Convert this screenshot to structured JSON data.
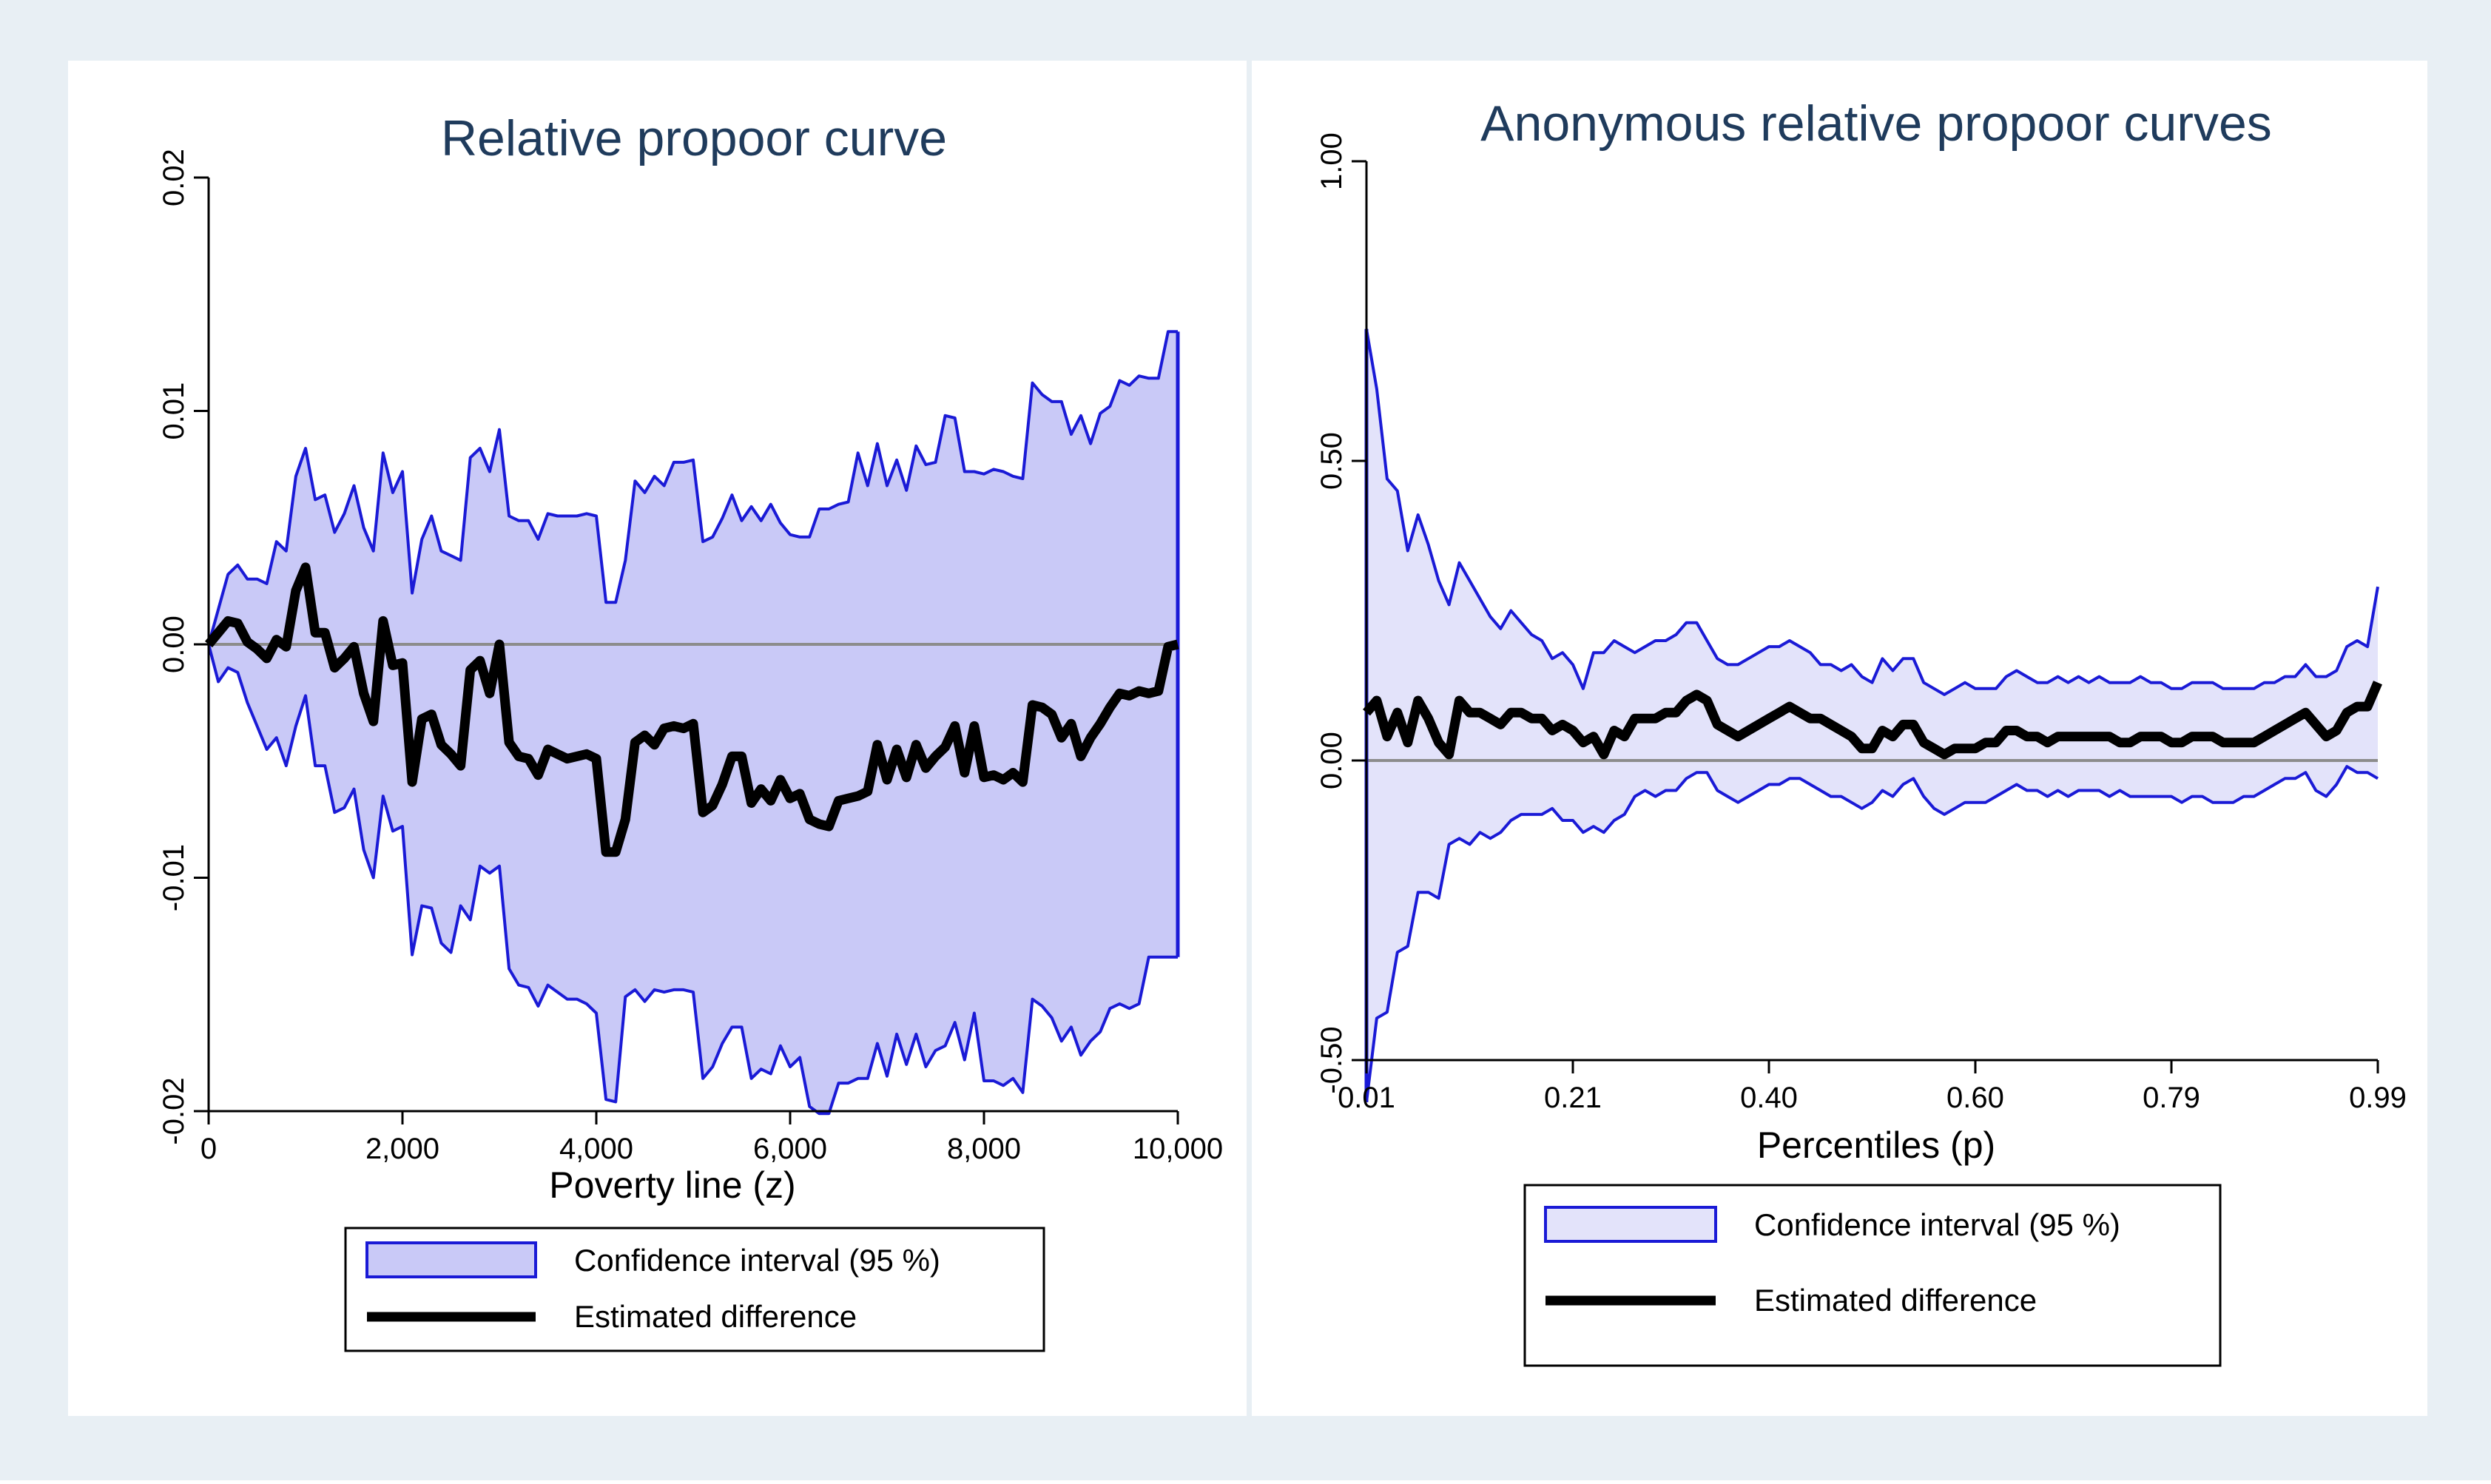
{
  "colors": {
    "frame_bg": "#e8eff4",
    "panel_bg": "#ffffff",
    "ci_fill": "#c9c9f7",
    "ci_fill_light": "#e3e3fa",
    "ci_line": "#1a1ad6",
    "estimate_line": "#000000",
    "zero_line": "#8c8c8c",
    "title_color": "#1f3b5c",
    "text_color": "#000000"
  },
  "chart_data": [
    {
      "type": "area",
      "title": "Relative propoor curve",
      "xlabel": "Poverty line (z)",
      "ylabel": "",
      "xlim": [
        0,
        10000
      ],
      "ylim": [
        -0.02,
        0.02
      ],
      "xticks": [
        0,
        2000,
        4000,
        6000,
        8000,
        10000
      ],
      "xtick_labels": [
        "0",
        "2,000",
        "4,000",
        "6,000",
        "8,000",
        "10,000"
      ],
      "yticks": [
        -0.02,
        -0.01,
        0,
        0.01,
        0.02
      ],
      "ytick_labels": [
        "-0.02",
        "-0.01",
        "0.00",
        "0.01",
        "0.02"
      ],
      "zero_line": 0,
      "legend": {
        "position": "bottom",
        "entries": [
          "Confidence interval (95 %)",
          "Estimated difference"
        ]
      },
      "x": [
        0,
        100,
        200,
        300,
        400,
        500,
        600,
        700,
        800,
        900,
        1000,
        1100,
        1200,
        1300,
        1400,
        1500,
        1600,
        1700,
        1800,
        1900,
        2000,
        2100,
        2200,
        2300,
        2400,
        2500,
        2600,
        2700,
        2800,
        2900,
        3000,
        3100,
        3200,
        3300,
        3400,
        3500,
        3600,
        3700,
        3800,
        3900,
        4000,
        4100,
        4200,
        4300,
        4400,
        4500,
        4600,
        4700,
        4800,
        4900,
        5000,
        5100,
        5200,
        5300,
        5400,
        5500,
        5600,
        5700,
        5800,
        5900,
        6000,
        6100,
        6200,
        6300,
        6400,
        6500,
        6600,
        6700,
        6800,
        6900,
        7000,
        7100,
        7200,
        7300,
        7400,
        7500,
        7600,
        7700,
        7800,
        7900,
        8000,
        8100,
        8200,
        8300,
        8400,
        8500,
        8600,
        8700,
        8800,
        8900,
        9000,
        9100,
        9200,
        9300,
        9400,
        9500,
        9600,
        9700,
        9800,
        9900,
        10000
      ],
      "series": [
        {
          "name": "Upper bound (95 % CI)",
          "values": [
            0,
            0.0015,
            0.003,
            0.0034,
            0.0028,
            0.0028,
            0.0026,
            0.0044,
            0.004,
            0.0072,
            0.0084,
            0.0062,
            0.0064,
            0.0048,
            0.0056,
            0.0068,
            0.005,
            0.004,
            0.0082,
            0.0065,
            0.0074,
            0.0022,
            0.0045,
            0.0055,
            0.004,
            0.0038,
            0.0036,
            0.008,
            0.0084,
            0.0074,
            0.0092,
            0.0055,
            0.0053,
            0.0053,
            0.0045,
            0.0056,
            0.0055,
            0.0055,
            0.0055,
            0.0056,
            0.0055,
            0.0018,
            0.0018,
            0.0036,
            0.007,
            0.0065,
            0.0072,
            0.0068,
            0.0078,
            0.0078,
            0.0079,
            0.0044,
            0.0046,
            0.0054,
            0.0064,
            0.0053,
            0.0059,
            0.0053,
            0.006,
            0.0052,
            0.0047,
            0.0046,
            0.0046,
            0.0058,
            0.0058,
            0.006,
            0.0061,
            0.0082,
            0.0068,
            0.0086,
            0.0068,
            0.0079,
            0.0066,
            0.0085,
            0.0077,
            0.0078,
            0.0098,
            0.0097,
            0.0074,
            0.0074,
            0.0073,
            0.0075,
            0.0074,
            0.0072,
            0.0071,
            0.0112,
            0.0107,
            0.0104,
            0.0104,
            0.009,
            0.0098,
            0.0086,
            0.0099,
            0.0102,
            0.0113,
            0.0111,
            0.0115,
            0.0114,
            0.0114,
            0.0134,
            0.0134
          ]
        },
        {
          "name": "Lower bound (95 % CI)",
          "values": [
            0,
            -0.0016,
            -0.001,
            -0.0012,
            -0.0025,
            -0.0035,
            -0.0045,
            -0.004,
            -0.0052,
            -0.0035,
            -0.0022,
            -0.0052,
            -0.0052,
            -0.0072,
            -0.007,
            -0.0062,
            -0.0088,
            -0.01,
            -0.0065,
            -0.008,
            -0.0078,
            -0.0133,
            -0.0112,
            -0.0113,
            -0.0128,
            -0.0132,
            -0.0112,
            -0.0118,
            -0.0095,
            -0.0098,
            -0.0095,
            -0.0139,
            -0.0146,
            -0.0147,
            -0.0155,
            -0.0146,
            -0.0149,
            -0.0152,
            -0.0152,
            -0.0154,
            -0.0158,
            -0.0195,
            -0.0196,
            -0.0151,
            -0.0148,
            -0.0153,
            -0.0148,
            -0.0149,
            -0.0148,
            -0.0148,
            -0.0149,
            -0.0186,
            -0.0181,
            -0.0171,
            -0.0164,
            -0.0164,
            -0.0186,
            -0.0182,
            -0.0184,
            -0.0172,
            -0.0181,
            -0.0177,
            -0.0198,
            -0.0201,
            -0.0201,
            -0.0188,
            -0.0188,
            -0.0186,
            -0.0186,
            -0.0171,
            -0.0185,
            -0.0167,
            -0.018,
            -0.0167,
            -0.0181,
            -0.0174,
            -0.0172,
            -0.0162,
            -0.0178,
            -0.0158,
            -0.0187,
            -0.0187,
            -0.0189,
            -0.0186,
            -0.0192,
            -0.0152,
            -0.0155,
            -0.016,
            -0.017,
            -0.0164,
            -0.0176,
            -0.017,
            -0.0166,
            -0.0156,
            -0.0154,
            -0.0156,
            -0.0154,
            -0.0134,
            -0.0134,
            -0.0134,
            -0.0134
          ]
        },
        {
          "name": "Estimated difference",
          "values": [
            0,
            0.0005,
            0.001,
            0.0009,
            0.0001,
            -0.0002,
            -0.0006,
            0.0002,
            -0.0001,
            0.0023,
            0.0033,
            0.0005,
            0.0005,
            -0.001,
            -0.0006,
            -0.0001,
            -0.0021,
            -0.0033,
            0.001,
            -0.0009,
            -0.0008,
            -0.0059,
            -0.0032,
            -0.003,
            -0.0043,
            -0.0047,
            -0.0052,
            -0.0011,
            -0.0007,
            -0.0021,
            0,
            -0.0042,
            -0.0048,
            -0.0049,
            -0.0056,
            -0.0045,
            -0.0047,
            -0.0049,
            -0.0048,
            -0.0047,
            -0.0049,
            -0.0089,
            -0.0089,
            -0.0075,
            -0.0042,
            -0.0039,
            -0.0043,
            -0.0036,
            -0.0035,
            -0.0036,
            -0.0034,
            -0.0072,
            -0.0069,
            -0.006,
            -0.0048,
            -0.0048,
            -0.0068,
            -0.0062,
            -0.0067,
            -0.0058,
            -0.0066,
            -0.0064,
            -0.0075,
            -0.0077,
            -0.0078,
            -0.0067,
            -0.0066,
            -0.0065,
            -0.0063,
            -0.0043,
            -0.0058,
            -0.0045,
            -0.0057,
            -0.0043,
            -0.0053,
            -0.0048,
            -0.0044,
            -0.0035,
            -0.0055,
            -0.0035,
            -0.0057,
            -0.0056,
            -0.0058,
            -0.0055,
            -0.0059,
            -0.0026,
            -0.0027,
            -0.003,
            -0.004,
            -0.0034,
            -0.0048,
            -0.004,
            -0.0034,
            -0.0027,
            -0.0021,
            -0.0022,
            -0.002,
            -0.0021,
            -0.002,
            -0.0001,
            0
          ]
        }
      ]
    },
    {
      "type": "area",
      "title": "Anonymous relative propoor curves",
      "xlabel": "Percentiles (p)",
      "ylabel": "",
      "xlim": [
        0.01,
        0.99
      ],
      "ylim": [
        -0.5,
        1.0
      ],
      "xticks": [
        0.01,
        0.21,
        0.4,
        0.6,
        0.79,
        0.99
      ],
      "xtick_labels": [
        "0.01",
        "0.21",
        "0.40",
        "0.60",
        "0.79",
        "0.99"
      ],
      "yticks": [
        -0.5,
        0,
        0.5,
        1.0
      ],
      "ytick_labels": [
        "-0.50",
        "0.00",
        "0.50",
        "1.00"
      ],
      "zero_line": 0,
      "legend": {
        "position": "bottom",
        "entries": [
          "Confidence interval (95 %)",
          "Estimated difference"
        ]
      },
      "x": [
        0.01,
        0.02,
        0.03,
        0.04,
        0.05,
        0.06,
        0.07,
        0.08,
        0.09,
        0.1,
        0.11,
        0.12,
        0.13,
        0.14,
        0.15,
        0.16,
        0.17,
        0.18,
        0.19,
        0.2,
        0.21,
        0.22,
        0.23,
        0.24,
        0.25,
        0.26,
        0.27,
        0.28,
        0.29,
        0.3,
        0.31,
        0.32,
        0.33,
        0.34,
        0.35,
        0.36,
        0.37,
        0.38,
        0.39,
        0.4,
        0.41,
        0.42,
        0.43,
        0.44,
        0.45,
        0.46,
        0.47,
        0.48,
        0.49,
        0.5,
        0.51,
        0.52,
        0.53,
        0.54,
        0.55,
        0.56,
        0.57,
        0.58,
        0.59,
        0.6,
        0.61,
        0.62,
        0.63,
        0.64,
        0.65,
        0.66,
        0.67,
        0.68,
        0.69,
        0.7,
        0.71,
        0.72,
        0.73,
        0.74,
        0.75,
        0.76,
        0.77,
        0.78,
        0.79,
        0.8,
        0.81,
        0.82,
        0.83,
        0.84,
        0.85,
        0.86,
        0.87,
        0.88,
        0.89,
        0.9,
        0.91,
        0.92,
        0.93,
        0.94,
        0.95,
        0.96,
        0.97,
        0.98,
        0.99
      ],
      "series": [
        {
          "name": "Upper bound (95 % CI)",
          "values": [
            0.72,
            0.62,
            0.47,
            0.45,
            0.35,
            0.41,
            0.36,
            0.3,
            0.26,
            0.33,
            0.3,
            0.27,
            0.24,
            0.22,
            0.25,
            0.23,
            0.21,
            0.2,
            0.17,
            0.18,
            0.16,
            0.12,
            0.18,
            0.18,
            0.2,
            0.19,
            0.18,
            0.19,
            0.2,
            0.2,
            0.21,
            0.23,
            0.23,
            0.2,
            0.17,
            0.16,
            0.16,
            0.17,
            0.18,
            0.19,
            0.19,
            0.2,
            0.19,
            0.18,
            0.16,
            0.16,
            0.15,
            0.16,
            0.14,
            0.13,
            0.17,
            0.15,
            0.17,
            0.17,
            0.13,
            0.12,
            0.11,
            0.12,
            0.13,
            0.12,
            0.12,
            0.12,
            0.14,
            0.15,
            0.14,
            0.13,
            0.13,
            0.14,
            0.13,
            0.14,
            0.13,
            0.14,
            0.13,
            0.13,
            0.13,
            0.14,
            0.13,
            0.13,
            0.12,
            0.12,
            0.13,
            0.13,
            0.13,
            0.12,
            0.12,
            0.12,
            0.12,
            0.13,
            0.13,
            0.14,
            0.14,
            0.16,
            0.14,
            0.14,
            0.15,
            0.19,
            0.2,
            0.19,
            0.29
          ]
        },
        {
          "name": "Lower bound (95 % CI)",
          "values": [
            -0.57,
            -0.43,
            -0.42,
            -0.32,
            -0.31,
            -0.22,
            -0.22,
            -0.23,
            -0.14,
            -0.13,
            -0.14,
            -0.12,
            -0.13,
            -0.12,
            -0.1,
            -0.09,
            -0.09,
            -0.09,
            -0.08,
            -0.1,
            -0.1,
            -0.12,
            -0.11,
            -0.12,
            -0.1,
            -0.09,
            -0.06,
            -0.05,
            -0.06,
            -0.05,
            -0.05,
            -0.03,
            -0.02,
            -0.02,
            -0.05,
            -0.06,
            -0.07,
            -0.06,
            -0.05,
            -0.04,
            -0.04,
            -0.03,
            -0.03,
            -0.04,
            -0.05,
            -0.06,
            -0.06,
            -0.07,
            -0.08,
            -0.07,
            -0.05,
            -0.06,
            -0.04,
            -0.03,
            -0.06,
            -0.08,
            -0.09,
            -0.08,
            -0.07,
            -0.07,
            -0.07,
            -0.06,
            -0.05,
            -0.04,
            -0.05,
            -0.05,
            -0.06,
            -0.05,
            -0.06,
            -0.05,
            -0.05,
            -0.05,
            -0.06,
            -0.05,
            -0.06,
            -0.06,
            -0.06,
            -0.06,
            -0.06,
            -0.07,
            -0.06,
            -0.06,
            -0.07,
            -0.07,
            -0.07,
            -0.06,
            -0.06,
            -0.05,
            -0.04,
            -0.03,
            -0.03,
            -0.02,
            -0.05,
            -0.06,
            -0.04,
            -0.01,
            -0.02,
            -0.02,
            -0.03
          ]
        },
        {
          "name": "Estimated difference",
          "values": [
            0.08,
            0.1,
            0.04,
            0.08,
            0.03,
            0.1,
            0.07,
            0.03,
            0.01,
            0.1,
            0.08,
            0.08,
            0.07,
            0.06,
            0.08,
            0.08,
            0.07,
            0.07,
            0.05,
            0.06,
            0.05,
            0.03,
            0.04,
            0.01,
            0.05,
            0.04,
            0.07,
            0.07,
            0.07,
            0.08,
            0.08,
            0.1,
            0.11,
            0.1,
            0.06,
            0.05,
            0.04,
            0.05,
            0.06,
            0.07,
            0.08,
            0.09,
            0.08,
            0.07,
            0.07,
            0.06,
            0.05,
            0.04,
            0.02,
            0.02,
            0.05,
            0.04,
            0.06,
            0.06,
            0.03,
            0.02,
            0.01,
            0.02,
            0.02,
            0.02,
            0.03,
            0.03,
            0.05,
            0.05,
            0.04,
            0.04,
            0.03,
            0.04,
            0.04,
            0.04,
            0.04,
            0.04,
            0.04,
            0.03,
            0.03,
            0.04,
            0.04,
            0.04,
            0.03,
            0.03,
            0.04,
            0.04,
            0.04,
            0.03,
            0.03,
            0.03,
            0.03,
            0.04,
            0.05,
            0.06,
            0.07,
            0.08,
            0.06,
            0.04,
            0.05,
            0.08,
            0.09,
            0.09,
            0.13
          ]
        }
      ]
    }
  ]
}
